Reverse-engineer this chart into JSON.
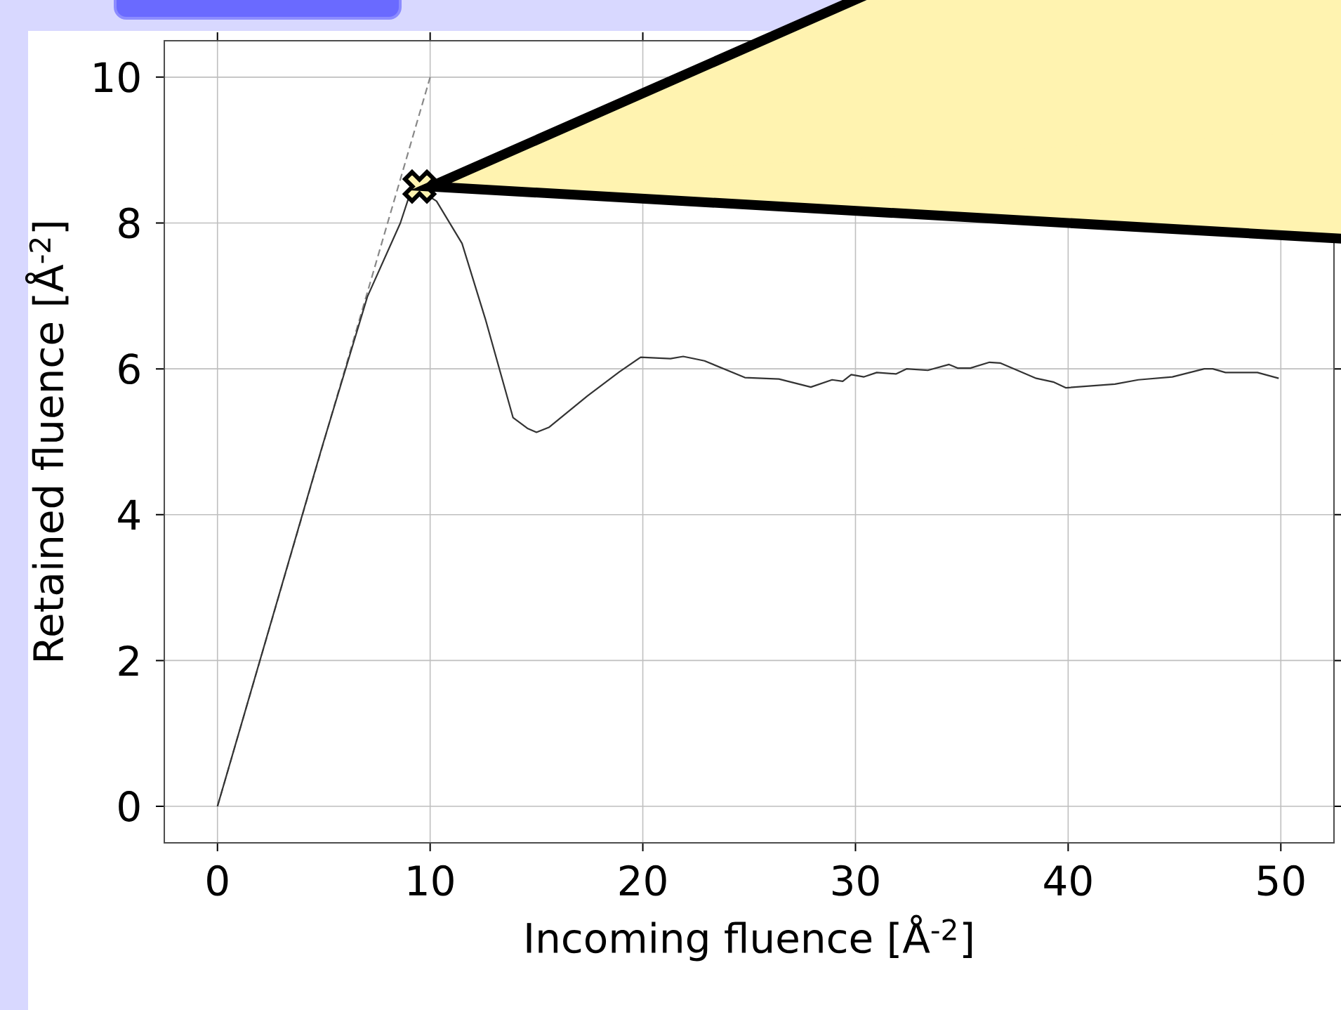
{
  "chart_data": {
    "type": "line",
    "xlabel": "Incoming fluence [Å$^{-2}$]",
    "ylabel": "Retained fluence [Å$^{-2}$]",
    "xlim": [
      -2.5,
      52.5
    ],
    "ylim": [
      -0.5,
      10.5
    ],
    "xticks": [
      0,
      10,
      20,
      30,
      40,
      50
    ],
    "yticks": [
      0,
      2,
      4,
      6,
      8,
      10
    ],
    "grid": true,
    "series": [
      {
        "color": "#888888",
        "line_style": "dashed",
        "x": [
          0,
          10
        ],
        "values": [
          0,
          10
        ]
      },
      {
        "color": "#333333",
        "x": [
          0,
          4.9,
          7.05,
          8.6,
          8.96,
          9.5,
          10.3,
          11.5,
          12.6,
          13.9,
          14.6,
          15.0,
          15.6,
          17.4,
          18.9,
          19.9,
          21.3,
          21.9,
          22.9,
          24.8,
          26.4,
          27.9,
          28.9,
          29.4,
          29.8,
          30.4,
          31.0,
          31.9,
          32.4,
          33.4,
          34.4,
          34.8,
          35.4,
          36.3,
          36.8,
          38.5,
          39.3,
          39.9,
          42.2,
          43.3,
          44.9,
          46.4,
          46.8,
          47.4,
          48.9,
          49.9
        ],
        "values": [
          0,
          4.91,
          6.99,
          8.0,
          8.32,
          8.45,
          8.3,
          7.72,
          6.68,
          5.33,
          5.18,
          5.13,
          5.2,
          5.63,
          5.96,
          6.16,
          6.14,
          6.17,
          6.11,
          5.88,
          5.86,
          5.75,
          5.85,
          5.83,
          5.92,
          5.89,
          5.95,
          5.93,
          6.0,
          5.98,
          6.06,
          6.01,
          6.01,
          6.09,
          6.08,
          5.87,
          5.82,
          5.74,
          5.79,
          5.85,
          5.89,
          6.0,
          6.0,
          5.95,
          5.95,
          5.87
        ]
      },
      {
        "type": "scatter",
        "marker": "cross",
        "color": "#fff3b0",
        "x": [
          9.5
        ],
        "values": [
          8.5
        ]
      }
    ]
  }
}
